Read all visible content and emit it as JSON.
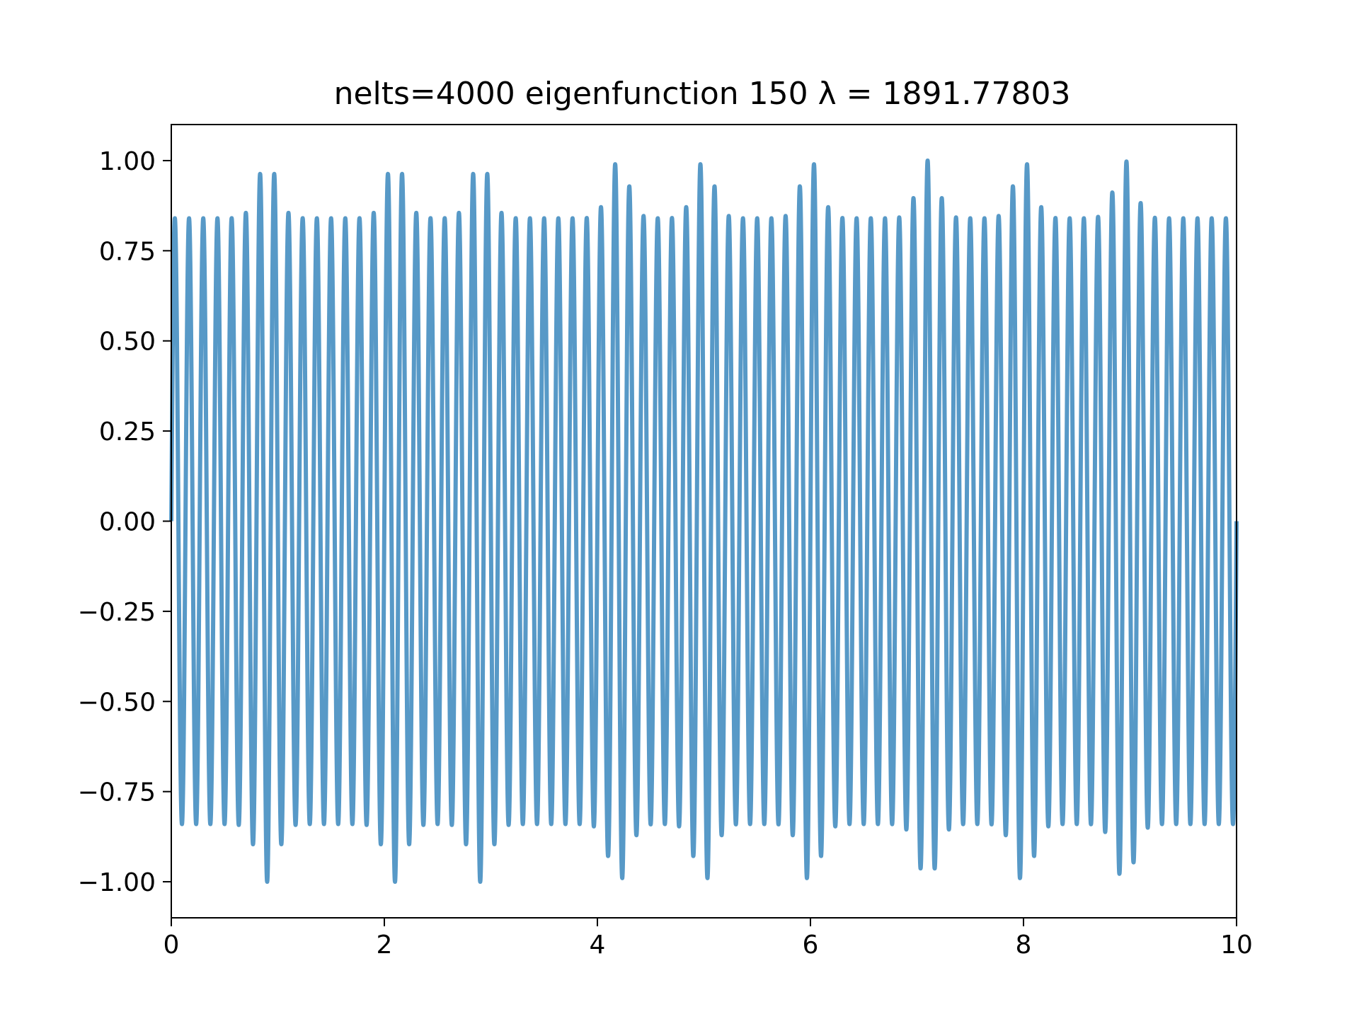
{
  "chart_data": {
    "type": "line",
    "title": "nelts=4000  eigenfunction 150  λ = 1891.77803",
    "xlabel": "",
    "ylabel": "",
    "xlim": [
      0,
      10
    ],
    "ylim": [
      -1.1,
      1.1
    ],
    "xticks": [
      0,
      2,
      4,
      6,
      8,
      10
    ],
    "xtick_labels": [
      "0",
      "2",
      "4",
      "6",
      "8",
      "10"
    ],
    "yticks": [
      1.0,
      0.75,
      0.5,
      0.25,
      0.0,
      -0.25,
      -0.5,
      -0.75,
      -1.0
    ],
    "ytick_labels": [
      "1.00",
      "0.75",
      "0.50",
      "0.25",
      "0.00",
      "−0.25",
      "−0.50",
      "−0.75",
      "−1.00"
    ],
    "grid": false,
    "legend": "none",
    "series": [
      {
        "color": "#5799c7",
        "oscillation": {
          "half_periods": 150,
          "base_amplitude": 0.84,
          "peak_amplitude": 1.0,
          "envelope_peak_x": [
            0.9,
            2.1,
            2.9,
            4.2,
            5.0,
            6.0,
            7.1,
            8.0,
            8.95
          ]
        }
      }
    ]
  }
}
